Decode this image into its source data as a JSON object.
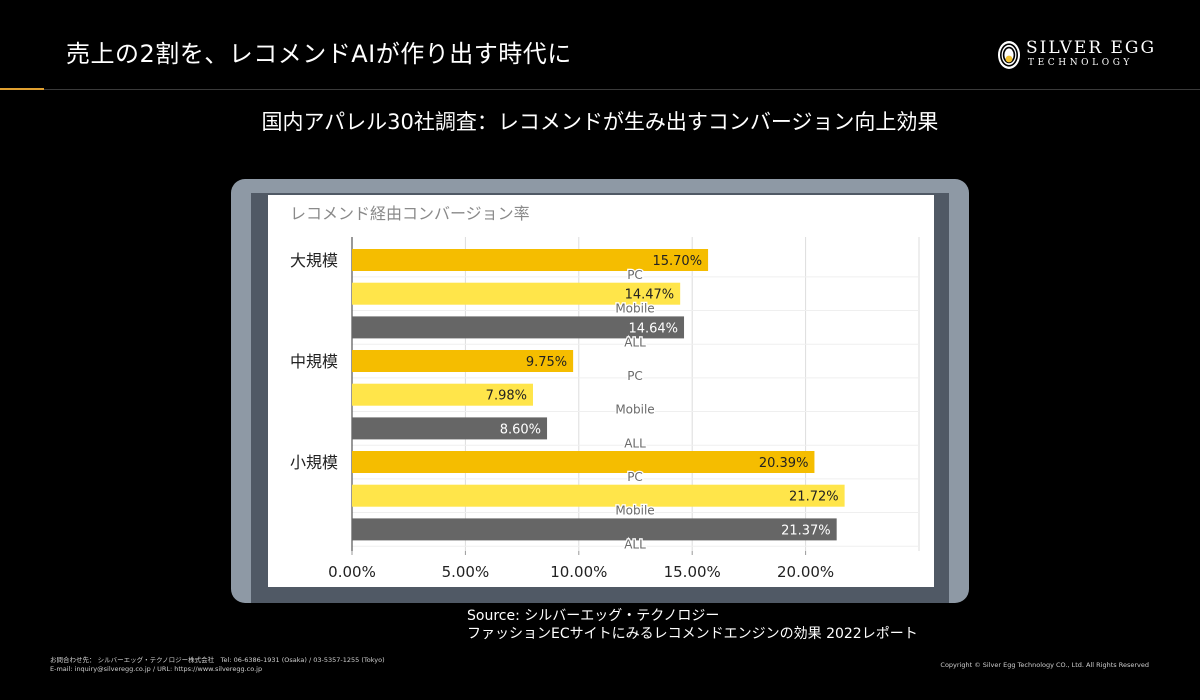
{
  "slide": {
    "title": "売上の2割を、レコメンドAIが作り出す時代に",
    "subtitle": "国内アパレル30社調査：レコメンドが生み出すコンバージョン向上効果"
  },
  "logo": {
    "name": "SILVER EGG",
    "sub": "TECHNOLOGY",
    "icon": "egg-logo-icon"
  },
  "chart_data": {
    "type": "bar",
    "orientation": "horizontal",
    "title": "レコメンド経由コンバージョン率",
    "groups": [
      "大規模",
      "中規模",
      "小規模"
    ],
    "series": [
      {
        "name": "PC",
        "values": [
          15.7,
          9.75,
          20.39
        ],
        "color": "#f5bd00"
      },
      {
        "name": "Mobile",
        "values": [
          14.47,
          7.98,
          21.72
        ],
        "color": "#ffe54a"
      },
      {
        "name": "ALL",
        "values": [
          14.64,
          8.6,
          21.37
        ],
        "color": "#666666"
      }
    ],
    "value_labels": [
      [
        "15.70%",
        "14.47%",
        "14.64%"
      ],
      [
        "9.75%",
        "7.98%",
        "8.60%"
      ],
      [
        "20.39%",
        "21.72%",
        "21.37%"
      ]
    ],
    "xlim": [
      0,
      25
    ],
    "xticks": [
      0,
      5,
      10,
      15,
      20
    ],
    "xtick_labels": [
      "0.00%",
      "5.00%",
      "10.00%",
      "15.00%",
      "20.00%"
    ],
    "grid": true
  },
  "source": {
    "line1": "Source: シルバーエッグ・テクノロジー",
    "line2": "ファッションECサイトにみるレコメンドエンジンの効果 2022レポート"
  },
  "footer": {
    "contact_line1": "お問合わせ先： シルバーエッグ・テクノロジー株式会社　Tel: 06-6386-1931 (Osaka) / 03-5357-1255 (Tokyo)",
    "contact_line2": "E-mail: inquiry@silveregg.co.jp / URL: https://www.silveregg.co.jp",
    "copyright": "Copyright © Silver Egg Technology CO., Ltd. All Rights Reserved"
  }
}
